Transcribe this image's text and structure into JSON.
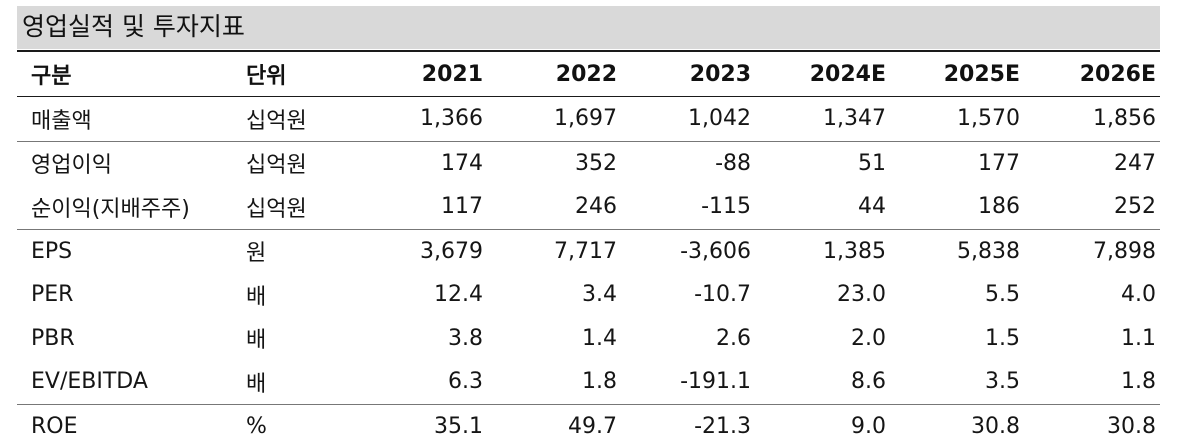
{
  "title": "영업실적 및 투자지표",
  "headers": {
    "category": "구분",
    "unit": "단위",
    "years": [
      "2021",
      "2022",
      "2023",
      "2024E",
      "2025E",
      "2026E"
    ]
  },
  "rows": [
    {
      "label": "매출액",
      "unit": "십억원",
      "values": [
        "1,366",
        "1,697",
        "1,042",
        "1,347",
        "1,570",
        "1,856"
      ]
    },
    {
      "label": "영업이익",
      "unit": "십억원",
      "values": [
        "174",
        "352",
        "-88",
        "51",
        "177",
        "247"
      ]
    },
    {
      "label": "순이익(지배주주)",
      "unit": "십억원",
      "values": [
        "117",
        "246",
        "-115",
        "44",
        "186",
        "252"
      ]
    },
    {
      "label": "EPS",
      "unit": "원",
      "values": [
        "3,679",
        "7,717",
        "-3,606",
        "1,385",
        "5,838",
        "7,898"
      ]
    },
    {
      "label": "PER",
      "unit": "배",
      "values": [
        "12.4",
        "3.4",
        "-10.7",
        "23.0",
        "5.5",
        "4.0"
      ]
    },
    {
      "label": "PBR",
      "unit": "배",
      "values": [
        "3.8",
        "1.4",
        "2.6",
        "2.0",
        "1.5",
        "1.1"
      ]
    },
    {
      "label": "EV/EBITDA",
      "unit": "배",
      "values": [
        "6.3",
        "1.8",
        "-191.1",
        "8.6",
        "3.5",
        "1.8"
      ]
    },
    {
      "label": "ROE",
      "unit": "%",
      "values": [
        "35.1",
        "49.7",
        "-21.3",
        "9.0",
        "30.8",
        "30.8"
      ]
    }
  ]
}
